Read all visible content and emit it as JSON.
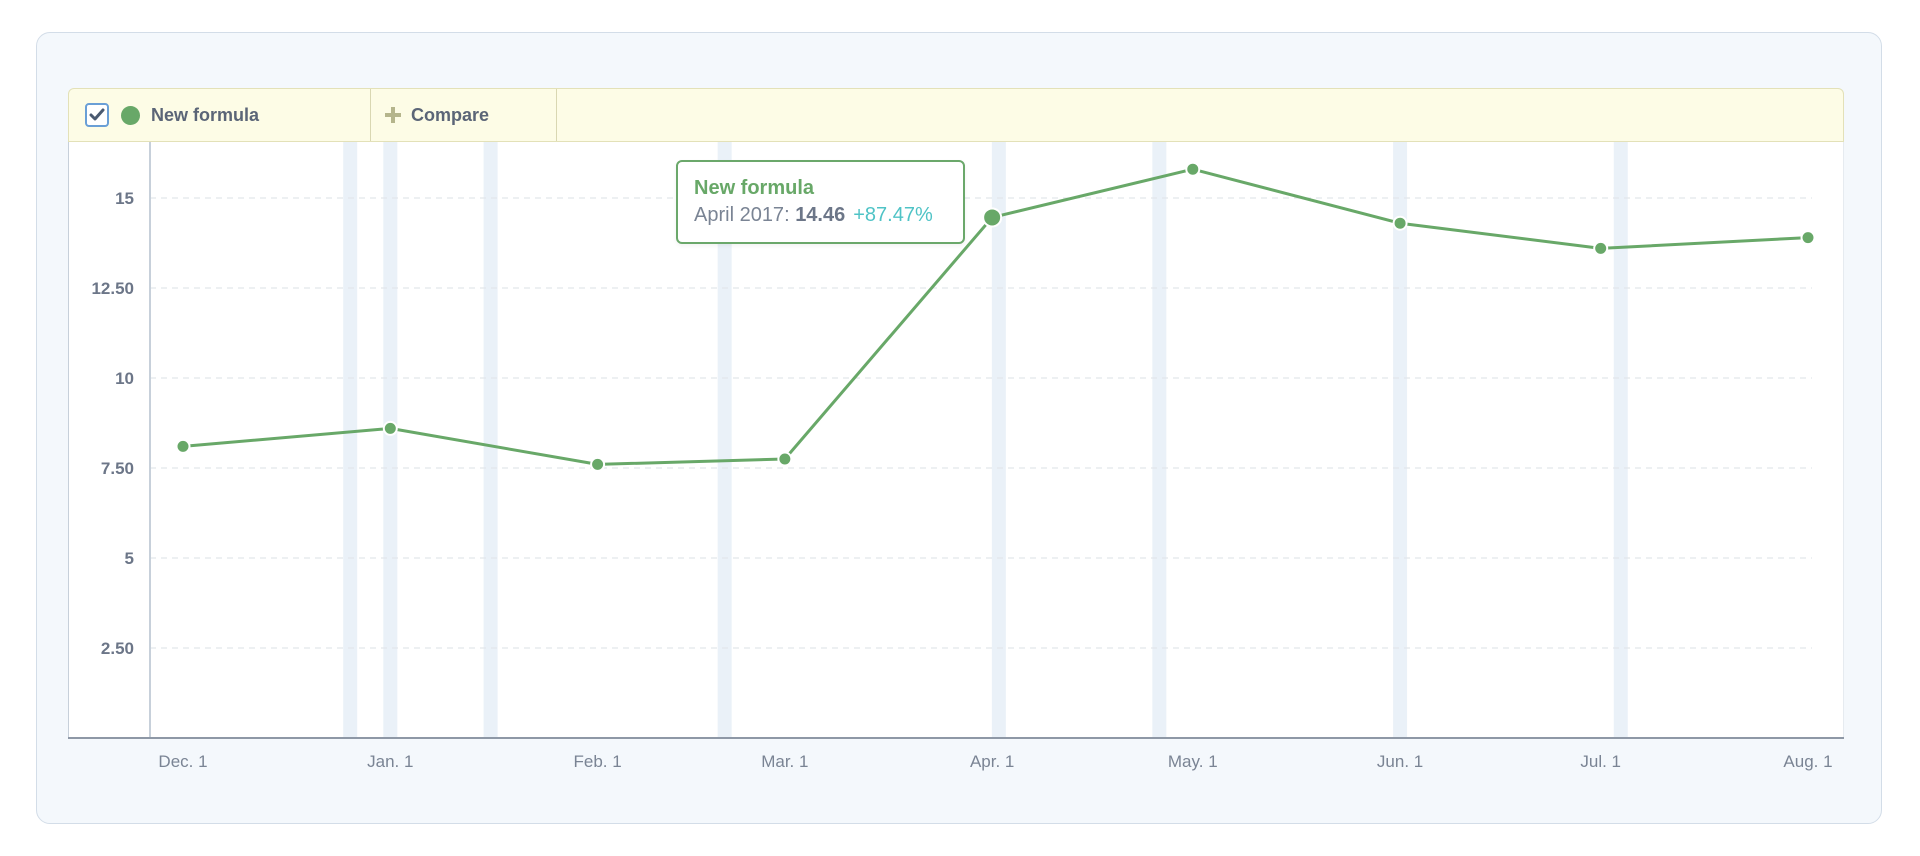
{
  "toolbar": {
    "series_label": "New formula",
    "compare_label": "Compare",
    "series_checked": true
  },
  "colors": {
    "series": "#68a868",
    "change": "#4fc3c6",
    "background": "#f4f8fc",
    "toolbar": "#fdfce6",
    "band": "#eaf1f8"
  },
  "icons": {
    "checkbox": "check-icon",
    "compare": "plus-icon"
  },
  "tooltip": {
    "title": "New formula",
    "period": "April 2017",
    "value": "14.46",
    "change": "+87.47%"
  },
  "chart_data": {
    "type": "line",
    "title": "",
    "xlabel": "",
    "ylabel": "",
    "grid": true,
    "ylim": [
      0,
      16.67
    ],
    "x_ticks": [
      "Dec. 1",
      "Jan. 1",
      "Feb. 1",
      "Mar. 1",
      "Apr. 1",
      "May. 1",
      "Jun. 1",
      "Jul. 1",
      "Aug. 1"
    ],
    "y_ticks": [
      {
        "value": 2.5,
        "label": "2.50"
      },
      {
        "value": 5,
        "label": "5"
      },
      {
        "value": 7.5,
        "label": "7.50"
      },
      {
        "value": 10,
        "label": "10"
      },
      {
        "value": 12.5,
        "label": "12.50"
      },
      {
        "value": 15,
        "label": "15"
      }
    ],
    "series": [
      {
        "name": "New formula",
        "color": "#68a868",
        "x": [
          "2016-12-01",
          "2017-01-01",
          "2017-02-01",
          "2017-03-01",
          "2017-04-01",
          "2017-05-01",
          "2017-06-01",
          "2017-07-01",
          "2017-08-01"
        ],
        "values": [
          8.1,
          8.6,
          7.6,
          7.75,
          14.46,
          15.8,
          14.3,
          13.6,
          13.9
        ]
      }
    ],
    "highlight": {
      "x": "2017-04-01",
      "value": 14.46
    },
    "shaded_dates": [
      "2016-12-26",
      "2017-01-01",
      "2017-01-16",
      "2017-02-20",
      "2017-04-02",
      "2017-04-26",
      "2017-06-01",
      "2017-07-04"
    ]
  }
}
